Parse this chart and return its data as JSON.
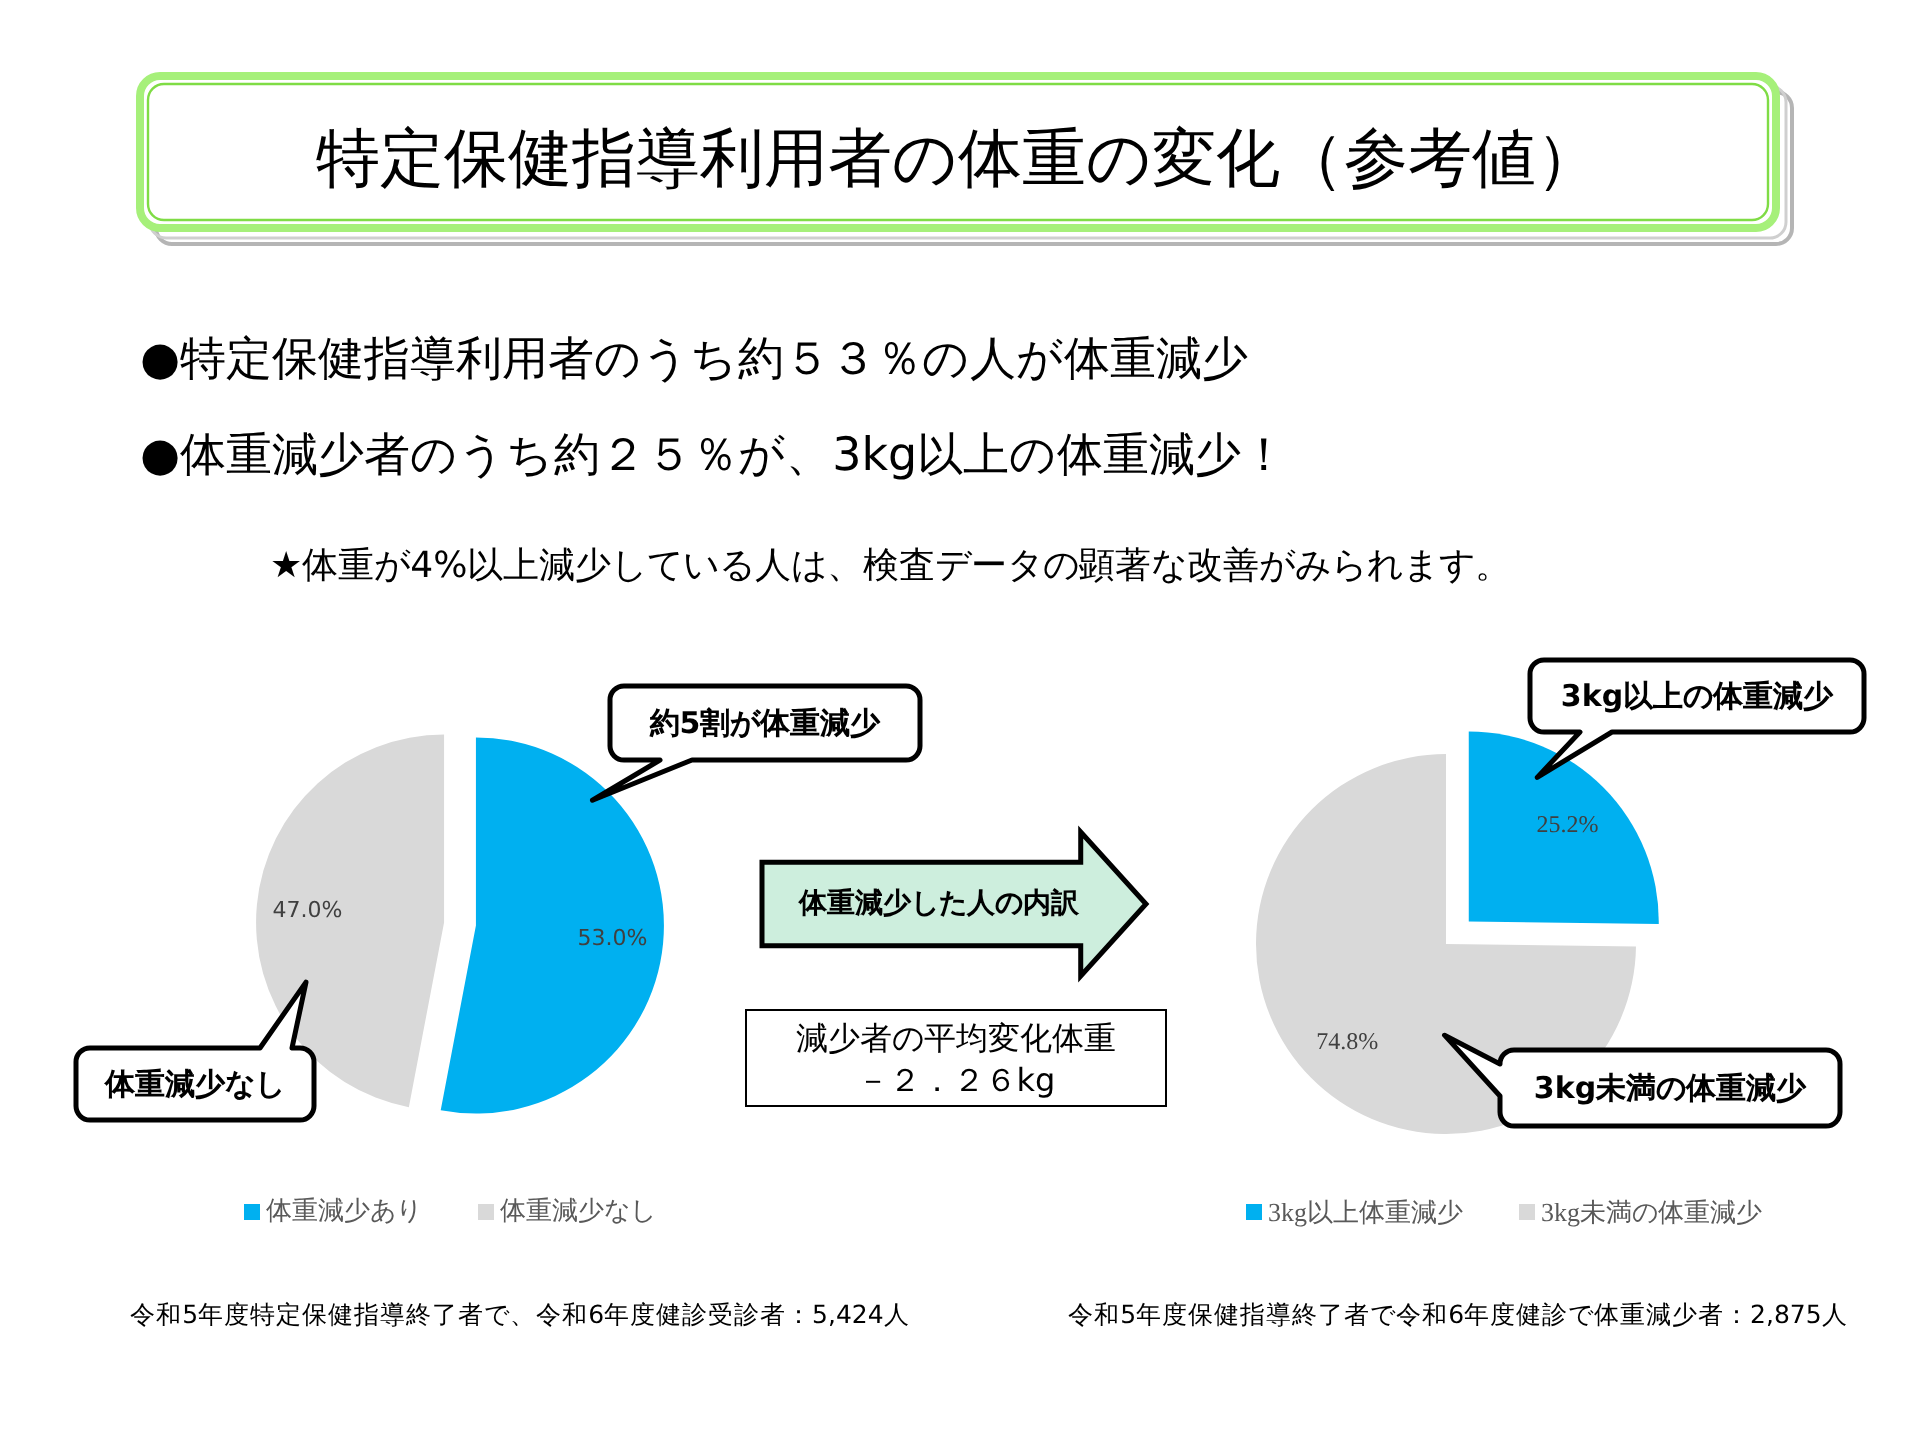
{
  "chart_data": [
    {
      "type": "pie",
      "title": "特定保健指導利用者の体重の変化（参考値）",
      "categories": [
        "体重減少あり",
        "体重減少なし"
      ],
      "values": [
        53.0,
        47.0
      ],
      "colors": [
        "#00b0f0",
        "#d9d9d9"
      ],
      "value_labels": [
        "53.0%",
        "47.0%"
      ],
      "legend": "bottom",
      "annotations": [
        "●特定保健指導利用者のうち約５３％の人が体重減少",
        "●体重減少者のうち約２５％が、3kg以上の体重減少！",
        "★体重が4%以上減少している人は、検査データの顕著な改善がみられます。",
        {
          "text": "約5割が体重減少",
          "x": "体重減少あり"
        },
        {
          "text": "体重減少なし",
          "x": "体重減少なし"
        },
        "体重減少した人の内訳",
        "減少者の平均変化体重",
        "－２．２６kg",
        "令和5年度特定保健指導終了者で、令和6年度健診受診者：5,424人"
      ]
    },
    {
      "type": "pie",
      "categories": [
        "3kg以上体重減少",
        "3kg未満の体重減少"
      ],
      "values": [
        25.2,
        74.8
      ],
      "colors": [
        "#00b0f0",
        "#d9d9d9"
      ],
      "value_labels": [
        "25.2%",
        "74.8%"
      ],
      "legend": "bottom",
      "annotations": [
        {
          "text": "3kg以上の体重減少",
          "x": "3kg以上体重減少"
        },
        {
          "text": "3kg未満の体重減少",
          "x": "3kg未満の体重減少"
        },
        "令和5年度保健指導終了者で令和6年度健診で体重減少者：2,875人"
      ]
    }
  ]
}
